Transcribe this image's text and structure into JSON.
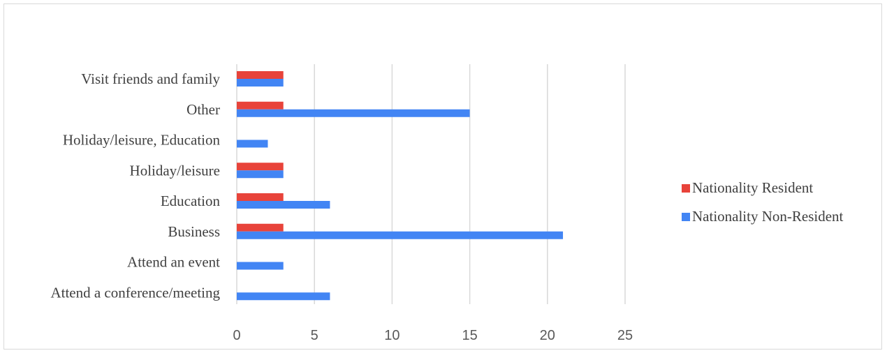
{
  "chart_data": {
    "type": "bar",
    "orientation": "horizontal",
    "categories": [
      "Visit friends and family",
      "Other",
      "Holiday/leisure, Education",
      "Holiday/leisure",
      "Education",
      "Business",
      "Attend an event",
      "Attend a conference/meeting"
    ],
    "series": [
      {
        "name": "Nationality Resident",
        "color": "#e8433a",
        "values": [
          3,
          3,
          0,
          3,
          3,
          3,
          0,
          0
        ]
      },
      {
        "name": "Nationality Non-Resident",
        "color": "#4285f4",
        "values": [
          3,
          15,
          2,
          3,
          6,
          21,
          3,
          6
        ]
      }
    ],
    "xlim": [
      0,
      25
    ],
    "xticks": [
      0,
      5,
      10,
      15,
      20,
      25
    ],
    "grid": true,
    "legend_position": "right",
    "title": "",
    "xlabel": "",
    "ylabel": ""
  }
}
